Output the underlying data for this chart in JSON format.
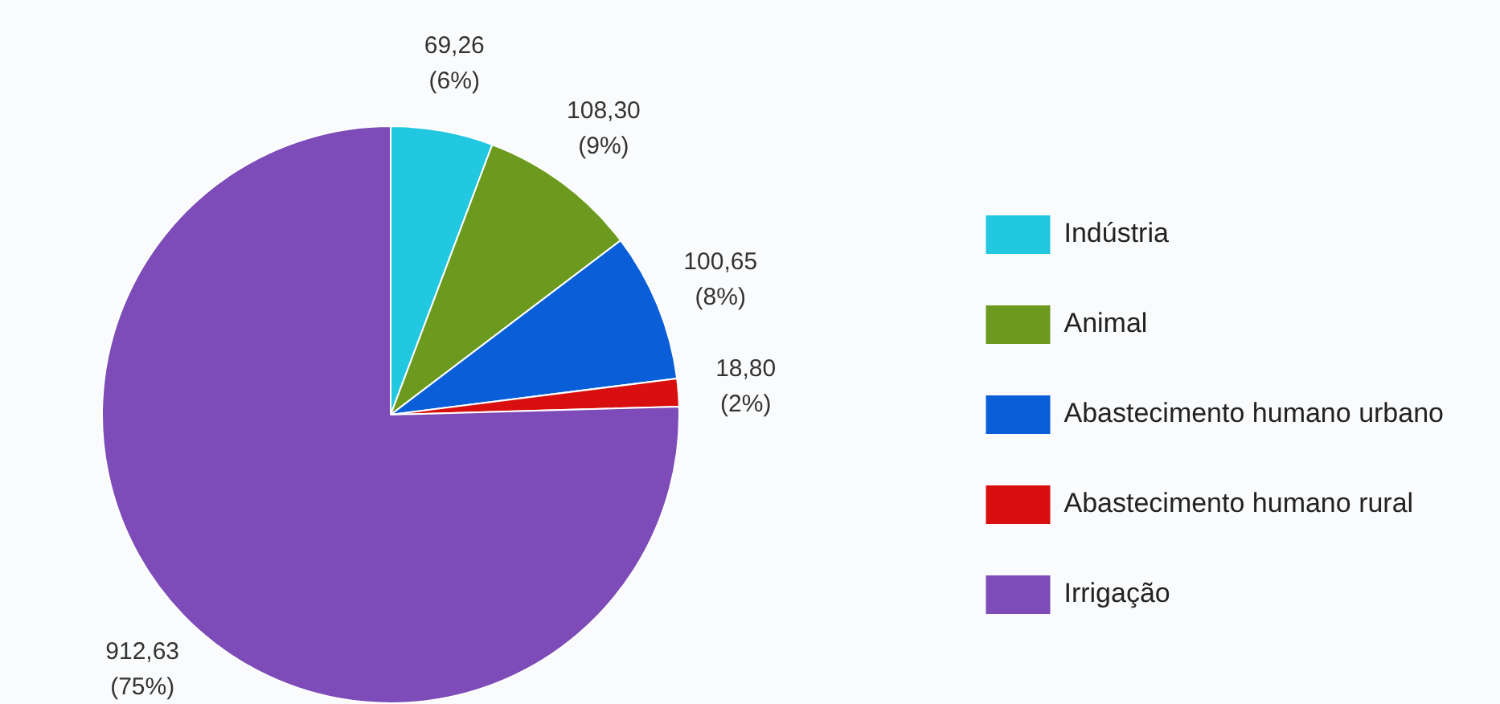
{
  "chart_data": {
    "type": "pie",
    "categories": [
      "Indústria",
      "Animal",
      "Abastecimento humano urbano",
      "Abastecimento humano rural",
      "Irrigação"
    ],
    "values": [
      69.26,
      108.3,
      100.65,
      18.8,
      912.63
    ],
    "colors": [
      "#22c7e0",
      "#6b9a1e",
      "#0a5fd8",
      "#d90f0f",
      "#7d4cb8"
    ],
    "value_labels": [
      "69,26\n(6%)",
      "108,30\n(9%)",
      "100,65\n(8%)",
      "18,80\n(2%)",
      "912,63\n(75%)"
    ],
    "legend": "right"
  }
}
